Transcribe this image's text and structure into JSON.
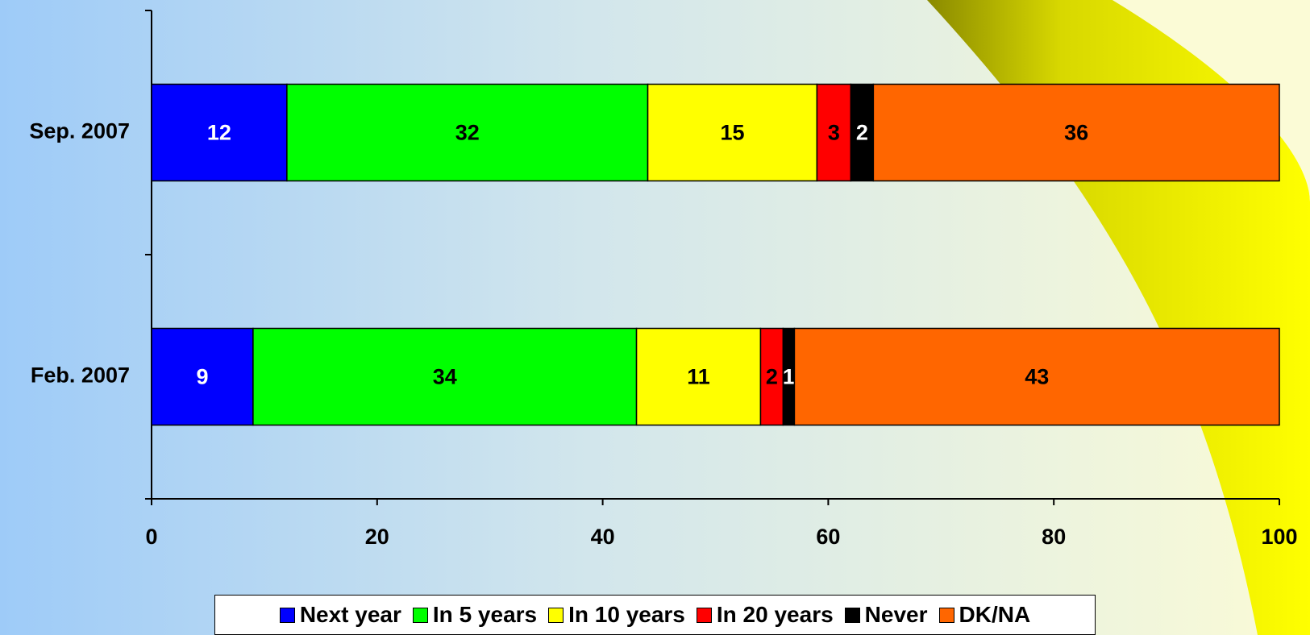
{
  "chart_data": {
    "type": "stacked-bar-horizontal",
    "categories": [
      "Sep. 2007",
      "Feb. 2007"
    ],
    "series": [
      {
        "name": "Next year",
        "color": "#0000ff",
        "values": [
          12,
          9
        ]
      },
      {
        "name": "In 5 years",
        "color": "#00ff00",
        "values": [
          32,
          34
        ]
      },
      {
        "name": "In 10 years",
        "color": "#ffff00",
        "values": [
          15,
          11
        ]
      },
      {
        "name": "In 20 years",
        "color": "#ff0000",
        "values": [
          3,
          2
        ]
      },
      {
        "name": "Never",
        "color": "#000000",
        "values": [
          2,
          1
        ]
      },
      {
        "name": "DK/NA",
        "color": "#ff6600",
        "values": [
          36,
          43
        ]
      }
    ],
    "xlim": [
      0,
      100
    ],
    "xticks": [
      0,
      20,
      40,
      60,
      80,
      100
    ],
    "legend": "bottom"
  }
}
